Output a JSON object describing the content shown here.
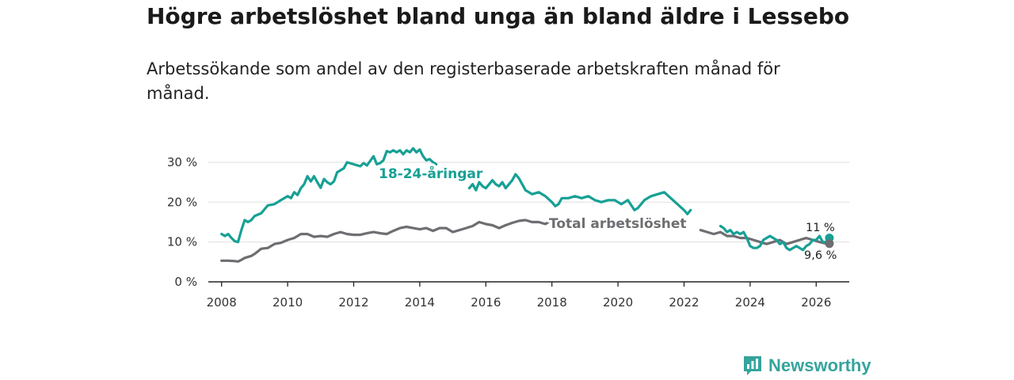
{
  "header": {
    "title": "Högre arbetslöshet bland unga än bland äldre i Lessebo",
    "subtitle": "Arbetssökande som andel av den registerbaserade arbetskraften månad för månad."
  },
  "brand": {
    "name": "Newsworthy",
    "icon": "bar-chart-speech-bubble-icon"
  },
  "colors": {
    "young": "#17a095",
    "total": "#6e6e72",
    "grid": "#e3e3e3",
    "axis": "#222222"
  },
  "chart_data": {
    "type": "line",
    "title": "Högre arbetslöshet bland unga än bland äldre i Lessebo",
    "xlabel": "",
    "ylabel": "",
    "xlim": [
      2007.6,
      2027
    ],
    "ylim": [
      0,
      30
    ],
    "grid": true,
    "x_ticks": [
      2008,
      2010,
      2012,
      2014,
      2016,
      2018,
      2020,
      2022,
      2024,
      2026
    ],
    "x_tick_labels": [
      "2008",
      "2010",
      "2012",
      "2014",
      "2016",
      "2018",
      "2020",
      "2022",
      "2024",
      "2026"
    ],
    "y_ticks": [
      0,
      10,
      20,
      30
    ],
    "y_tick_labels": [
      "0 %",
      "10 %",
      "20 %",
      "30 %"
    ],
    "series": [
      {
        "name": "18-24-åringar",
        "color": "#17a095",
        "label": "18-24-åringar",
        "end_label": "11 %",
        "points": [
          [
            2008.0,
            12.0
          ],
          [
            2008.1,
            11.5
          ],
          [
            2008.2,
            12.0
          ],
          [
            2008.3,
            11.0
          ],
          [
            2008.4,
            10.2
          ],
          [
            2008.5,
            10.0
          ],
          [
            2008.6,
            13.0
          ],
          [
            2008.7,
            15.5
          ],
          [
            2008.8,
            15.0
          ],
          [
            2008.9,
            15.5
          ],
          [
            2009.0,
            16.5
          ],
          [
            2009.2,
            17.2
          ],
          [
            2009.4,
            19.2
          ],
          [
            2009.6,
            19.5
          ],
          [
            2009.8,
            20.5
          ],
          [
            2010.0,
            21.5
          ],
          [
            2010.1,
            21.0
          ],
          [
            2010.2,
            22.5
          ],
          [
            2010.3,
            21.8
          ],
          [
            2010.4,
            23.5
          ],
          [
            2010.5,
            24.5
          ],
          [
            2010.6,
            26.5
          ],
          [
            2010.7,
            25.2
          ],
          [
            2010.8,
            26.5
          ],
          [
            2010.9,
            25.0
          ],
          [
            2011.0,
            23.6
          ],
          [
            2011.1,
            25.8
          ],
          [
            2011.2,
            25.0
          ],
          [
            2011.3,
            24.5
          ],
          [
            2011.4,
            25.2
          ],
          [
            2011.5,
            27.5
          ],
          [
            2011.6,
            28.0
          ],
          [
            2011.7,
            28.5
          ],
          [
            2011.8,
            30.0
          ],
          [
            2012.0,
            29.5
          ],
          [
            2012.2,
            29.0
          ],
          [
            2012.3,
            29.8
          ],
          [
            2012.4,
            29.2
          ],
          [
            2012.6,
            31.5
          ],
          [
            2012.7,
            29.5
          ],
          [
            2012.8,
            29.8
          ],
          [
            2012.9,
            30.5
          ],
          [
            2013.0,
            32.8
          ],
          [
            2013.1,
            32.5
          ],
          [
            2013.2,
            33.0
          ],
          [
            2013.3,
            32.5
          ],
          [
            2013.4,
            33.0
          ],
          [
            2013.5,
            32.0
          ],
          [
            2013.6,
            33.0
          ],
          [
            2013.7,
            32.5
          ],
          [
            2013.8,
            33.5
          ],
          [
            2013.9,
            32.5
          ],
          [
            2014.0,
            33.2
          ],
          [
            2014.1,
            31.5
          ],
          [
            2014.2,
            30.5
          ],
          [
            2014.3,
            30.8
          ],
          [
            2014.4,
            30.0
          ],
          [
            2014.5,
            29.5
          ],
          null,
          [
            2015.5,
            23.5
          ],
          [
            2015.6,
            24.5
          ],
          [
            2015.7,
            23.0
          ],
          [
            2015.8,
            25.0
          ],
          [
            2015.9,
            24.0
          ],
          [
            2016.0,
            23.5
          ],
          [
            2016.1,
            24.5
          ],
          [
            2016.2,
            25.5
          ],
          [
            2016.3,
            24.5
          ],
          [
            2016.4,
            24.0
          ],
          [
            2016.5,
            25.0
          ],
          [
            2016.6,
            23.5
          ],
          [
            2016.7,
            24.5
          ],
          [
            2016.8,
            25.5
          ],
          [
            2016.9,
            27.0
          ],
          [
            2017.0,
            26.0
          ],
          [
            2017.1,
            24.5
          ],
          [
            2017.2,
            23.0
          ],
          [
            2017.4,
            22.0
          ],
          [
            2017.6,
            22.5
          ],
          [
            2017.8,
            21.5
          ],
          [
            2018.0,
            20.0
          ],
          [
            2018.1,
            19.0
          ],
          [
            2018.2,
            19.5
          ],
          [
            2018.3,
            21.0
          ],
          [
            2018.5,
            21.0
          ],
          [
            2018.7,
            21.5
          ],
          [
            2018.9,
            21.0
          ],
          [
            2019.1,
            21.5
          ],
          [
            2019.3,
            20.5
          ],
          [
            2019.5,
            20.0
          ],
          [
            2019.7,
            20.5
          ],
          [
            2019.9,
            20.5
          ],
          [
            2020.1,
            19.5
          ],
          [
            2020.3,
            20.5
          ],
          [
            2020.5,
            18.0
          ],
          [
            2020.6,
            18.5
          ],
          [
            2020.8,
            20.5
          ],
          [
            2021.0,
            21.5
          ],
          [
            2021.2,
            22.0
          ],
          [
            2021.4,
            22.5
          ],
          [
            2021.6,
            21.0
          ],
          [
            2021.8,
            19.5
          ],
          [
            2022.0,
            18.0
          ],
          [
            2022.1,
            17.0
          ],
          [
            2022.2,
            18.0
          ],
          null,
          [
            2023.1,
            14.0
          ],
          [
            2023.2,
            13.5
          ],
          [
            2023.3,
            12.5
          ],
          [
            2023.4,
            13.0
          ],
          [
            2023.5,
            12.0
          ],
          [
            2023.6,
            12.5
          ],
          [
            2023.7,
            12.0
          ],
          [
            2023.8,
            12.5
          ],
          [
            2023.9,
            11.0
          ],
          [
            2024.0,
            9.0
          ],
          [
            2024.1,
            8.5
          ],
          [
            2024.2,
            8.5
          ],
          [
            2024.3,
            9.0
          ],
          [
            2024.4,
            10.5
          ],
          [
            2024.5,
            11.0
          ],
          [
            2024.6,
            11.5
          ],
          [
            2024.7,
            11.0
          ],
          [
            2024.8,
            10.5
          ],
          [
            2024.9,
            9.5
          ],
          [
            2025.0,
            10.0
          ],
          [
            2025.1,
            8.5
          ],
          [
            2025.2,
            8.0
          ],
          [
            2025.3,
            8.5
          ],
          [
            2025.4,
            9.0
          ],
          [
            2025.5,
            8.5
          ],
          [
            2025.6,
            8.0
          ],
          [
            2025.7,
            9.0
          ],
          [
            2025.8,
            9.5
          ],
          [
            2025.9,
            10.5
          ],
          [
            2026.0,
            10.5
          ],
          [
            2026.1,
            11.5
          ],
          [
            2026.2,
            10.0
          ],
          [
            2026.3,
            10.0
          ],
          [
            2026.4,
            11.0
          ]
        ]
      },
      {
        "name": "Total arbetslöshet",
        "color": "#6e6e72",
        "label": "Total arbetslöshet",
        "end_label": "9,6 %",
        "points": [
          [
            2008.0,
            5.3
          ],
          [
            2008.2,
            5.3
          ],
          [
            2008.4,
            5.2
          ],
          [
            2008.5,
            5.1
          ],
          [
            2008.6,
            5.5
          ],
          [
            2008.7,
            6.0
          ],
          [
            2008.9,
            6.5
          ],
          [
            2009.0,
            7.0
          ],
          [
            2009.2,
            8.3
          ],
          [
            2009.4,
            8.5
          ],
          [
            2009.6,
            9.5
          ],
          [
            2009.8,
            9.8
          ],
          [
            2010.0,
            10.5
          ],
          [
            2010.2,
            11.0
          ],
          [
            2010.4,
            12.0
          ],
          [
            2010.6,
            12.0
          ],
          [
            2010.8,
            11.3
          ],
          [
            2011.0,
            11.5
          ],
          [
            2011.2,
            11.3
          ],
          [
            2011.4,
            12.0
          ],
          [
            2011.6,
            12.5
          ],
          [
            2011.8,
            12.0
          ],
          [
            2012.0,
            11.8
          ],
          [
            2012.2,
            11.8
          ],
          [
            2012.4,
            12.2
          ],
          [
            2012.6,
            12.5
          ],
          [
            2012.8,
            12.2
          ],
          [
            2013.0,
            12.0
          ],
          [
            2013.2,
            12.8
          ],
          [
            2013.4,
            13.5
          ],
          [
            2013.6,
            13.8
          ],
          [
            2013.8,
            13.5
          ],
          [
            2014.0,
            13.2
          ],
          [
            2014.2,
            13.5
          ],
          [
            2014.4,
            12.8
          ],
          [
            2014.6,
            13.5
          ],
          [
            2014.8,
            13.5
          ],
          [
            2015.0,
            12.5
          ],
          [
            2015.2,
            13.0
          ],
          [
            2015.4,
            13.5
          ],
          [
            2015.6,
            14.0
          ],
          [
            2015.8,
            15.0
          ],
          [
            2016.0,
            14.5
          ],
          [
            2016.2,
            14.2
          ],
          [
            2016.4,
            13.5
          ],
          [
            2016.6,
            14.2
          ],
          [
            2016.8,
            14.8
          ],
          [
            2017.0,
            15.3
          ],
          [
            2017.2,
            15.5
          ],
          [
            2017.4,
            15.0
          ],
          [
            2017.6,
            15.0
          ],
          [
            2017.8,
            14.5
          ],
          [
            2018.0,
            15.5
          ],
          [
            2018.2,
            15.8
          ],
          [
            2018.4,
            15.0
          ],
          [
            2018.6,
            14.8
          ],
          [
            2018.8,
            15.0
          ],
          [
            2019.0,
            15.5
          ],
          null,
          [
            2022.5,
            13.0
          ],
          [
            2022.7,
            12.5
          ],
          [
            2022.9,
            12.0
          ],
          [
            2023.1,
            12.5
          ],
          [
            2023.3,
            11.5
          ],
          [
            2023.5,
            11.5
          ],
          [
            2023.7,
            11.0
          ],
          [
            2023.9,
            11.0
          ],
          [
            2024.1,
            10.5
          ],
          [
            2024.3,
            10.0
          ],
          [
            2024.5,
            9.5
          ],
          [
            2024.7,
            10.0
          ],
          [
            2024.9,
            10.5
          ],
          [
            2025.1,
            9.5
          ],
          [
            2025.3,
            10.0
          ],
          [
            2025.5,
            10.5
          ],
          [
            2025.7,
            11.0
          ],
          [
            2025.9,
            10.5
          ],
          [
            2026.1,
            10.0
          ],
          [
            2026.3,
            9.6
          ],
          [
            2026.4,
            9.6
          ]
        ]
      }
    ]
  }
}
